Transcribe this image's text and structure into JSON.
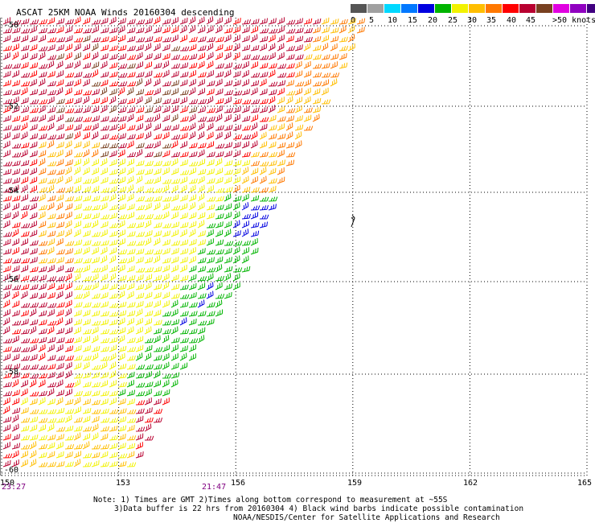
{
  "header": {
    "title": "ASCAT 25KM NOAA Winds 20160304 descending"
  },
  "legend": {
    "labels": [
      "0",
      "5",
      "10",
      "15",
      "20",
      "25",
      "30",
      "35",
      "40",
      "45",
      ">50 knots"
    ],
    "colors": [
      "#555555",
      "#a0a0a0",
      "#00d8ff",
      "#0078ff",
      "#0000e0",
      "#00b400",
      "#f2f200",
      "#ffbe00",
      "#ff7800",
      "#ff0000",
      "#b80030",
      "#784020",
      "#e000e0",
      "#9000c0",
      "#400080"
    ]
  },
  "axes": {
    "lat_labels": [
      "-50",
      "-52",
      "-54",
      "-56",
      "-58",
      "-60"
    ],
    "lon_labels": [
      "150",
      "153",
      "156",
      "159",
      "162",
      "165"
    ],
    "time_labels": [
      "23:27",
      "21:47"
    ]
  },
  "notes": {
    "line1": "Note: 1) Times are GMT 2)Times along bottom correspond to measurement at ~55S",
    "line2": "3)Data buffer is 22 hrs from 20160304 4) Black wind barbs indicate possible contamination",
    "line3": "NOAA/NESDIS/Center for Satellite Applications and Research"
  },
  "map_data": {
    "lat_range": [
      -60,
      -50
    ],
    "lon_range": [
      150,
      165
    ],
    "swath_edge": [
      [
        159.5,
        -49.6
      ],
      [
        157.2,
        -53.7
      ],
      [
        156.1,
        -56
      ],
      [
        154.6,
        -58
      ],
      [
        153.3,
        -60
      ]
    ]
  }
}
